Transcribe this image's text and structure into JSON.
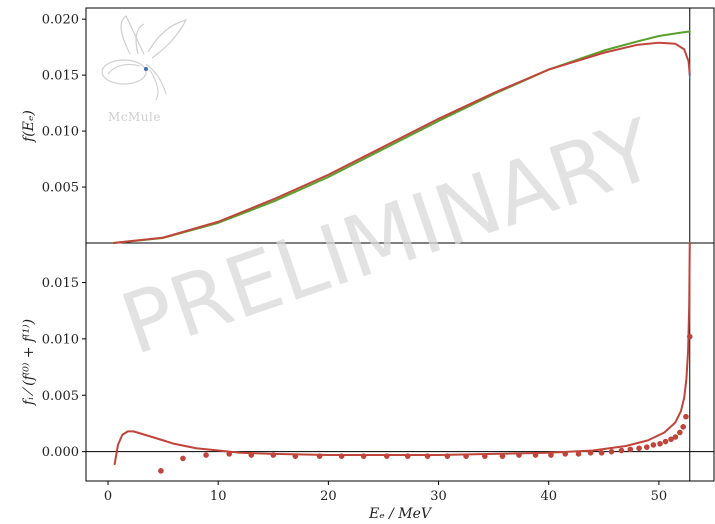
{
  "watermark": "PRELIMINARY",
  "logo": {
    "text": "McMule"
  },
  "colors": {
    "green": "#5aa02c",
    "red": "#c0443a",
    "blue": "#3a6fb0",
    "axis": "#000000",
    "refline": "#000000"
  },
  "chart_data": [
    {
      "type": "line",
      "panel": "top",
      "ylabel": "f(E_e)",
      "ylabel_display": "f(Eₑ)",
      "xlim": [
        -2,
        55
      ],
      "ylim": [
        0,
        0.021
      ],
      "yticks": [
        0.005,
        0.01,
        0.015,
        0.02
      ],
      "ytick_labels": [
        "0.005",
        "0.010",
        "0.015",
        "0.020"
      ],
      "vline_x": 52.8,
      "series": [
        {
          "color": "green",
          "x": [
            0.5,
            5,
            10,
            15,
            20,
            25,
            30,
            35,
            40,
            45,
            48,
            50,
            52,
            52.8
          ],
          "y": [
            0.0,
            0.00045,
            0.0018,
            0.0037,
            0.0059,
            0.0084,
            0.0109,
            0.0133,
            0.0155,
            0.0172,
            0.018,
            0.0185,
            0.0188,
            0.0189
          ]
        },
        {
          "color": "red",
          "x": [
            0.5,
            5,
            10,
            15,
            20,
            25,
            30,
            35,
            40,
            45,
            48,
            50,
            51.5,
            52.3,
            52.7,
            52.8
          ],
          "y": [
            0.0,
            0.00048,
            0.0019,
            0.0039,
            0.0061,
            0.0086,
            0.0111,
            0.0134,
            0.0155,
            0.017,
            0.0177,
            0.0179,
            0.0178,
            0.0173,
            0.0162,
            0.015
          ]
        },
        {
          "color": "blue",
          "x": [
            52.78,
            52.8
          ],
          "y": [
            0.0152,
            0.0147
          ]
        }
      ]
    },
    {
      "type": "line",
      "panel": "bottom",
      "xlabel": "E_e / MeV",
      "xlabel_display": "Eₑ / MeV",
      "ylabel": "f_i / (f^(0) + f^(1))",
      "ylabel_display": "fᵢ ⁄ (f⁽⁰⁾ + f⁽¹⁾)",
      "xlim": [
        -2,
        55
      ],
      "ylim": [
        -0.0026,
        0.0185
      ],
      "xticks": [
        0,
        10,
        20,
        30,
        40,
        50
      ],
      "xtick_labels": [
        "0",
        "10",
        "20",
        "30",
        "40",
        "50"
      ],
      "yticks": [
        0.0,
        0.005,
        0.01,
        0.015
      ],
      "ytick_labels": [
        "0.000",
        "0.005",
        "0.010",
        "0.015"
      ],
      "hline_y": 0,
      "vline_x": 52.8,
      "series": [
        {
          "color": "red",
          "style": "line",
          "x": [
            0.6,
            0.9,
            1.3,
            1.8,
            2.3,
            3,
            4,
            5,
            6,
            8,
            10,
            12,
            15,
            20,
            25,
            30,
            35,
            40,
            44,
            47,
            49,
            50.5,
            51.5,
            52.0,
            52.3,
            52.5,
            52.65,
            52.75,
            52.8
          ],
          "y": [
            -0.0011,
            0.0006,
            0.0015,
            0.0018,
            0.0018,
            0.0016,
            0.0013,
            0.001,
            0.0007,
            0.0003,
            0.0001,
            -0.0001,
            -0.0002,
            -0.0003,
            -0.0003,
            -0.0003,
            -0.0002,
            -0.0001,
            0.0001,
            0.0005,
            0.001,
            0.0017,
            0.0026,
            0.0036,
            0.0048,
            0.0065,
            0.009,
            0.013,
            0.0185
          ]
        },
        {
          "color": "red",
          "style": "points",
          "x": [
            4.8,
            6.8,
            8.9,
            11,
            13,
            15,
            17,
            19.2,
            21.2,
            23.2,
            25.3,
            27.2,
            29,
            30.8,
            32.5,
            34.2,
            35.8,
            37.3,
            38.8,
            40.2,
            41.5,
            42.7,
            43.8,
            44.8,
            45.7,
            46.6,
            47.4,
            48.2,
            48.9,
            49.5,
            50.1,
            50.6,
            51.1,
            51.5,
            51.9,
            52.2,
            52.45,
            52.8
          ],
          "y": [
            -0.0017,
            -0.0006,
            -0.0003,
            -0.0002,
            -0.0003,
            -0.0003,
            -0.0004,
            -0.0004,
            -0.0004,
            -0.0004,
            -0.0004,
            -0.0004,
            -0.0004,
            -0.0004,
            -0.0004,
            -0.0004,
            -0.0004,
            -0.0003,
            -0.0003,
            -0.0003,
            -0.0002,
            -0.0002,
            -0.0001,
            -0.0001,
            0.0,
            0.0001,
            0.0002,
            0.0003,
            0.0004,
            0.0006,
            0.0007,
            0.0009,
            0.0011,
            0.0013,
            0.0017,
            0.0022,
            0.0031,
            0.0102
          ]
        }
      ]
    }
  ]
}
